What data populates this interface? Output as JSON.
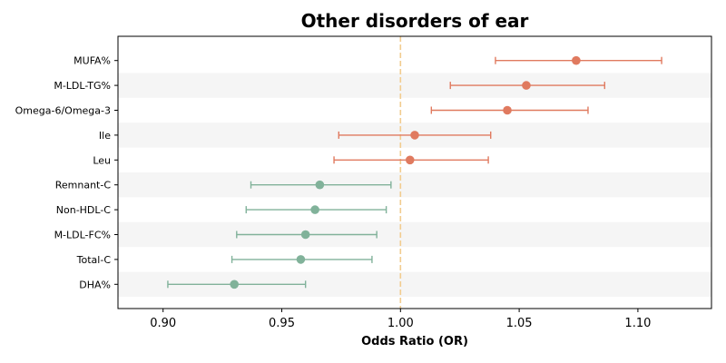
{
  "chart_data": {
    "type": "forest",
    "title": "Other disorders of ear",
    "xlabel": "Odds Ratio (OR)",
    "ylabel": "",
    "xlim": [
      0.881,
      1.131
    ],
    "xticks": [
      0.9,
      0.95,
      1.0,
      1.05,
      1.1
    ],
    "xtick_labels": [
      "0.90",
      "0.95",
      "1.00",
      "1.05",
      "1.10"
    ],
    "reference_line": 1.0,
    "grid": false,
    "categories": [
      "MUFA%",
      "M-LDL-TG%",
      "Omega-6/Omega-3",
      "Ile",
      "Leu",
      "Remnant-C",
      "Non-HDL-C",
      "M-LDL-FC%",
      "Total-C",
      "DHA%"
    ],
    "or": [
      1.074,
      1.053,
      1.045,
      1.006,
      1.004,
      0.966,
      0.964,
      0.96,
      0.958,
      0.93
    ],
    "ci_low": [
      1.04,
      1.021,
      1.013,
      0.974,
      0.972,
      0.937,
      0.935,
      0.931,
      0.929,
      0.902
    ],
    "ci_high": [
      1.11,
      1.086,
      1.079,
      1.038,
      1.037,
      0.996,
      0.994,
      0.99,
      0.988,
      0.96
    ],
    "colors": {
      "risk": "#e07a5f",
      "protective": "#81b29a",
      "reference": "#f2cc8f",
      "band": "#f5f5f5",
      "axis": "#000000"
    }
  }
}
